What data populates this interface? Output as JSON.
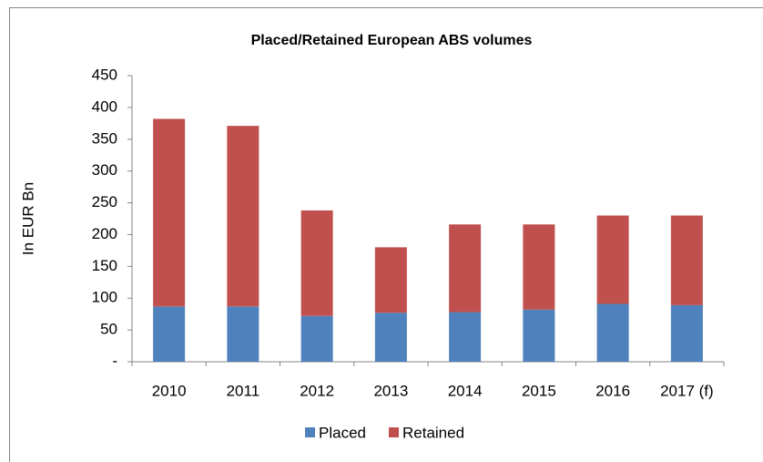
{
  "chart_data": {
    "type": "stacked_bar",
    "title": "Placed/Retained European ABS volumes",
    "y_label": "In EUR Bn",
    "categories": [
      "2010",
      "2011",
      "2012",
      "2013",
      "2014",
      "2015",
      "2016",
      "2017 (f)"
    ],
    "series": [
      {
        "name": "Placed",
        "color": "#4f81bd",
        "values": [
          87,
          87,
          72,
          77,
          78,
          82,
          91,
          89
        ]
      },
      {
        "name": "Retained",
        "color": "#c0504d",
        "values": [
          295,
          284,
          166,
          103,
          138,
          134,
          139,
          141
        ]
      }
    ],
    "ylim": [
      0,
      450
    ],
    "yticks": [
      {
        "value": 0,
        "label": "-"
      },
      50,
      100,
      150,
      200,
      250,
      300,
      350,
      400,
      450
    ],
    "grid": false,
    "legend": "bottom"
  }
}
